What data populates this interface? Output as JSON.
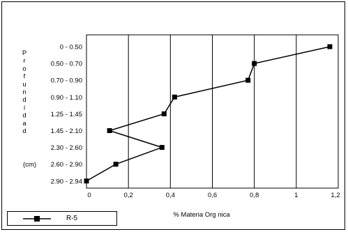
{
  "chart_data": {
    "type": "line",
    "xlabel": "% Materia Org nica",
    "ylabel_vertical": "Profundidad",
    "ylabel_unit": "(cm)",
    "xlim": [
      0,
      1.2
    ],
    "x_ticks": [
      "0",
      "0,2",
      "0,4",
      "0,6",
      "0,8",
      "1",
      "1,2"
    ],
    "categories": [
      "0 - 0.50",
      "0.50 - 0.70",
      "0.70 - 0.90",
      "0.90 - 1.10",
      "1.25 - 1.45",
      "1.45 - 2.10",
      "2.30 - 2.60",
      "2.60 - 2.90",
      "2.90 - 2.94"
    ],
    "series": [
      {
        "name": "R-5",
        "values": [
          1.16,
          0.8,
          0.77,
          0.42,
          0.37,
          0.11,
          0.36,
          0.14,
          0.0
        ]
      }
    ],
    "grid": "vertical",
    "legend_position": "bottom-left",
    "colors": {
      "line": "#000000",
      "marker": "#000000"
    }
  }
}
